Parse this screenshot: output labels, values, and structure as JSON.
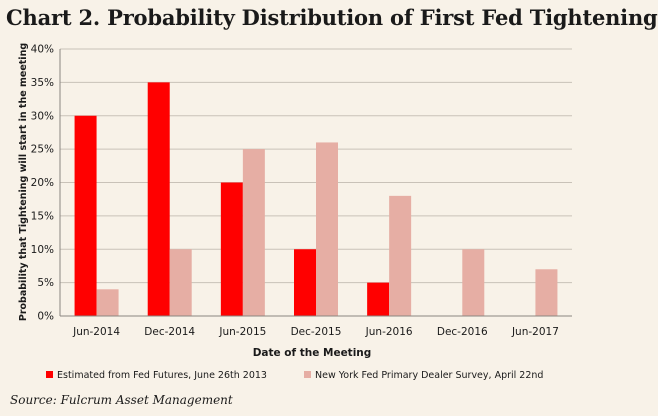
{
  "title": "Chart 2. Probability Distribution of First Fed Tightening",
  "source": "Source: Fulcrum Asset Management",
  "colors": {
    "series1": "#ff0000",
    "series2": "#e6aea4",
    "background": "#f8f2e8",
    "grid": "#c9c2b8"
  },
  "chart_data": {
    "type": "bar",
    "categories": [
      "Jun-2014",
      "Dec-2014",
      "Jun-2015",
      "Dec-2015",
      "Jun-2016",
      "Dec-2016",
      "Jun-2017"
    ],
    "series": [
      {
        "name": "Estimated from Fed Futures, June 26th 2013",
        "values": [
          30,
          35,
          20,
          10,
          5,
          null,
          null
        ]
      },
      {
        "name": "New York Fed Primary Dealer Survey, April 22nd",
        "values": [
          4,
          10,
          25,
          26,
          18,
          10,
          7
        ]
      }
    ],
    "yticks": [
      "0%",
      "5%",
      "10%",
      "15%",
      "20%",
      "25%",
      "30%",
      "35%",
      "40%"
    ],
    "xlabel": "Date of the Meeting",
    "ylabel": "Probability that Tightening will start in the meeting",
    "ylim": [
      0,
      40
    ],
    "grid": true,
    "legend": "bottom"
  }
}
